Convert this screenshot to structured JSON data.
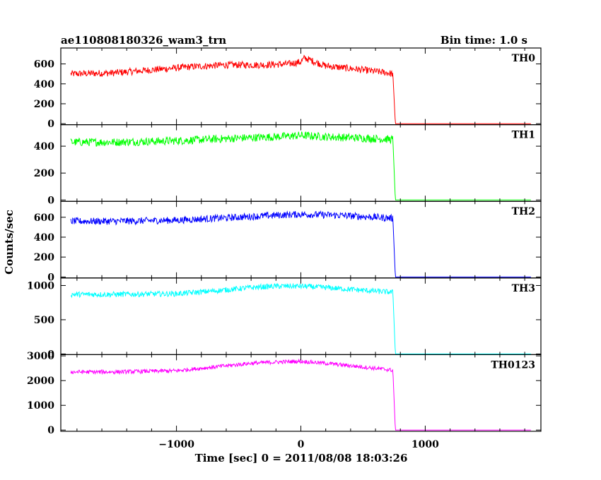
{
  "chart_data": {
    "type": "line",
    "title": "ae110808180326_wam3_trn",
    "bin_time_label": "Bin time: 1.0 s",
    "xlabel": "Time [sec] 0 = 2011/08/08 18:03:26",
    "ylabel": "Counts/sec",
    "xlim": [
      -1930,
      1930
    ],
    "x_ticks": [
      -1000,
      0,
      1000
    ],
    "x_tick_labels": [
      "−1000",
      "0",
      "1000"
    ],
    "grid": false,
    "panels": [
      {
        "name": "TH0",
        "color": "#ff0000",
        "ylim": [
          -10,
          760
        ],
        "y_ticks": [
          0,
          200,
          400,
          600
        ],
        "y_tick_labels": [
          "0",
          "200",
          "400",
          "600"
        ],
        "series": {
          "x": [
            -1850,
            -1500,
            -1200,
            -900,
            -600,
            -300,
            -100,
            0,
            30,
            200,
            500,
            700,
            740,
            760,
            1850
          ],
          "y": [
            500,
            510,
            540,
            570,
            590,
            590,
            600,
            620,
            660,
            580,
            540,
            510,
            500,
            0,
            0
          ],
          "noise": 35
        }
      },
      {
        "name": "TH1",
        "color": "#00ff00",
        "ylim": [
          -10,
          560
        ],
        "y_ticks": [
          0,
          200,
          400
        ],
        "y_tick_labels": [
          "0",
          "200",
          "400"
        ],
        "series": {
          "x": [
            -1850,
            -1500,
            -1000,
            -500,
            -200,
            0,
            200,
            500,
            740,
            760,
            1850
          ],
          "y": [
            430,
            430,
            440,
            460,
            470,
            480,
            470,
            460,
            450,
            0,
            0
          ],
          "noise": 30
        }
      },
      {
        "name": "TH2",
        "color": "#0000ff",
        "ylim": [
          -10,
          760
        ],
        "y_ticks": [
          0,
          200,
          400,
          600
        ],
        "y_tick_labels": [
          "0",
          "200",
          "400",
          "600"
        ],
        "series": {
          "x": [
            -1850,
            -1500,
            -1000,
            -500,
            -200,
            0,
            300,
            600,
            740,
            760,
            1850
          ],
          "y": [
            560,
            560,
            570,
            600,
            620,
            630,
            620,
            600,
            590,
            0,
            0
          ],
          "noise": 35
        }
      },
      {
        "name": "TH3",
        "color": "#00ffff",
        "ylim": [
          -10,
          1110
        ],
        "y_ticks": [
          0,
          500,
          1000
        ],
        "y_tick_labels": [
          "0",
          "500",
          "1000"
        ],
        "series": {
          "x": [
            -1850,
            -1500,
            -1000,
            -700,
            -400,
            -200,
            0,
            200,
            500,
            740,
            760,
            1850
          ],
          "y": [
            870,
            870,
            880,
            920,
            970,
            990,
            990,
            970,
            930,
            900,
            0,
            0
          ],
          "noise": 40
        }
      },
      {
        "name": "TH0123",
        "color": "#ff00ff",
        "ylim": [
          -50,
          3050
        ],
        "y_ticks": [
          0,
          1000,
          2000,
          3000
        ],
        "y_tick_labels": [
          "0",
          "1000",
          "2000",
          "3000"
        ],
        "series": {
          "x": [
            -1850,
            -1500,
            -1000,
            -700,
            -400,
            -200,
            0,
            200,
            500,
            740,
            760,
            1850
          ],
          "y": [
            2350,
            2350,
            2400,
            2550,
            2700,
            2750,
            2780,
            2700,
            2550,
            2420,
            0,
            0
          ],
          "noise": 80
        }
      }
    ]
  }
}
